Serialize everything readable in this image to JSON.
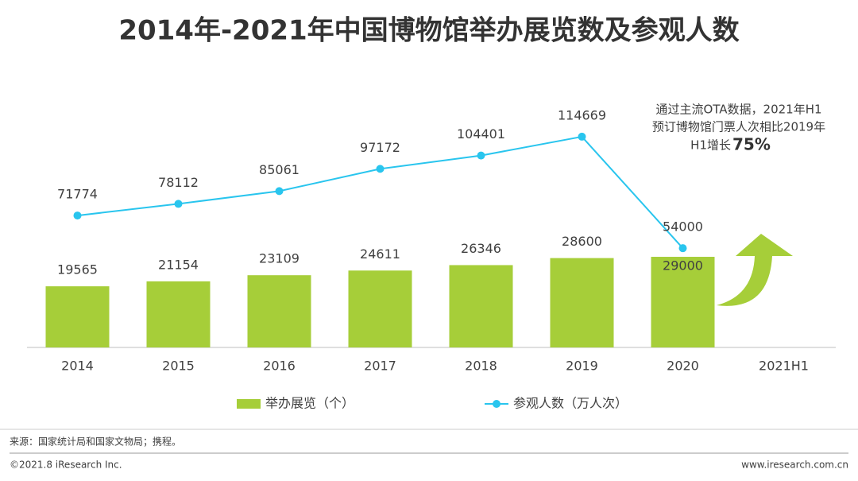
{
  "chart_data": {
    "type": "bar-line",
    "title": "2014年-2021年中国博物馆举办展览数及参观人数",
    "categories": [
      "2014",
      "2015",
      "2016",
      "2017",
      "2018",
      "2019",
      "2020",
      "2021H1"
    ],
    "series": [
      {
        "name": "举办展览（个）",
        "type": "bar",
        "color": "#a6ce39",
        "values": [
          19565,
          21154,
          23109,
          24611,
          26346,
          28600,
          29000,
          null
        ]
      },
      {
        "name": "参观人数（万人次）",
        "type": "line",
        "axis": "y2",
        "color": "#29c5ee",
        "values": [
          71774,
          78112,
          85061,
          97172,
          104401,
          114669,
          54000,
          null
        ]
      }
    ],
    "ylim": [
      0,
      100000
    ],
    "y2lim": [
      0,
      170000
    ],
    "annotation": {
      "lines": [
        "通过主流OTA数据，2021年H1",
        "预订博物馆门票人次相比2019年",
        "H1增长"
      ],
      "highlight": "75%"
    },
    "source": "来源：国家统计局和国家文物局；携程。",
    "copyright": "©2021.8 iResearch Inc.",
    "website": "www.iresearch.com.cn"
  }
}
